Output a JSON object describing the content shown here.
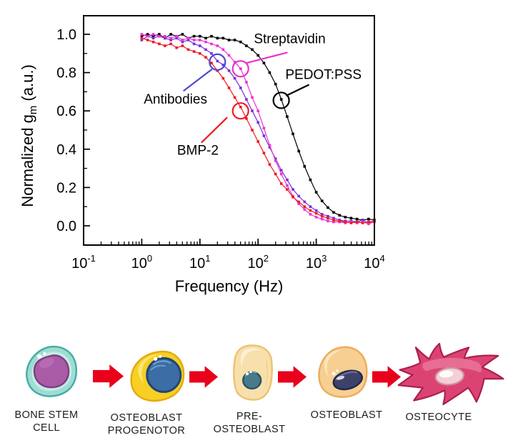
{
  "figure": {
    "background": "#ffffff"
  },
  "chart_data": {
    "type": "line",
    "title": "",
    "x_axis": {
      "label": "Frequency (Hz)",
      "scale": "log",
      "ticks": [
        "10^-1",
        "10^0",
        "10^1",
        "10^2",
        "10^3",
        "10^4"
      ],
      "tick_exponents": [
        -1,
        0,
        1,
        2,
        3,
        4
      ],
      "range_hz": [
        0.1,
        10000
      ]
    },
    "y_axis": {
      "label": "Normalized g_m (a.u.)",
      "label_parts": [
        "Normalized g",
        "m",
        " (a.u.)"
      ],
      "ticks": [
        "0.0",
        "0.2",
        "0.4",
        "0.6",
        "0.8",
        "1.0"
      ],
      "tick_values": [
        0.0,
        0.2,
        0.4,
        0.6,
        0.8,
        1.0
      ],
      "range": [
        -0.1,
        1.09
      ]
    },
    "grid": false,
    "legend": "annotated-on-plot",
    "frequencies_hz": [
      1,
      1.26,
      1.58,
      2,
      2.51,
      3.16,
      3.98,
      5.01,
      6.31,
      7.94,
      10,
      12.6,
      15.8,
      20,
      25.1,
      31.6,
      39.8,
      50.1,
      63.1,
      79.4,
      100,
      126,
      158,
      200,
      251,
      316,
      398,
      501,
      631,
      794,
      1000,
      1259,
      1585,
      1995,
      2512,
      3162,
      3981,
      5012,
      6310,
      7943,
      10000
    ],
    "series": [
      {
        "name": "PEDOT:PSS",
        "color": "#000000",
        "marker": "square",
        "values": [
          0.99,
          1.0,
          0.99,
          1.0,
          0.98,
          1.0,
          0.99,
          1.0,
          0.98,
          0.99,
          0.99,
          0.98,
          0.99,
          0.98,
          0.98,
          0.97,
          0.97,
          0.96,
          0.94,
          0.92,
          0.89,
          0.85,
          0.8,
          0.74,
          0.66,
          0.57,
          0.48,
          0.39,
          0.31,
          0.24,
          0.175,
          0.13,
          0.095,
          0.07,
          0.055,
          0.045,
          0.04,
          0.035,
          0.03,
          0.035,
          0.03
        ]
      },
      {
        "name": "Antibodies",
        "color": "#7B2ED8",
        "marker": "square",
        "values": [
          0.97,
          0.99,
          0.98,
          0.99,
          0.98,
          0.97,
          0.98,
          0.96,
          0.97,
          0.95,
          0.94,
          0.92,
          0.9,
          0.86,
          0.84,
          0.81,
          0.77,
          0.72,
          0.66,
          0.6,
          0.54,
          0.47,
          0.41,
          0.35,
          0.29,
          0.24,
          0.19,
          0.155,
          0.125,
          0.1,
          0.08,
          0.06,
          0.05,
          0.04,
          0.03,
          0.025,
          0.025,
          0.02,
          0.03,
          0.015,
          0.025
        ]
      },
      {
        "name": "Streptavidin",
        "color": "#E934D0",
        "marker": "square",
        "values": [
          1.0,
          0.99,
          1.0,
          0.99,
          0.99,
          0.98,
          0.99,
          0.97,
          0.98,
          0.97,
          0.97,
          0.96,
          0.95,
          0.94,
          0.92,
          0.89,
          0.855,
          0.82,
          0.75,
          0.67,
          0.6,
          0.51,
          0.42,
          0.34,
          0.27,
          0.21,
          0.155,
          0.115,
          0.085,
          0.06,
          0.045,
          0.035,
          0.025,
          0.02,
          0.02,
          0.015,
          0.02,
          0.015,
          0.02,
          0.01,
          0.02
        ]
      },
      {
        "name": "BMP-2",
        "color": "#ED1C24",
        "marker": "square",
        "values": [
          0.98,
          0.97,
          0.96,
          0.95,
          0.94,
          0.95,
          0.93,
          0.94,
          0.92,
          0.91,
          0.9,
          0.88,
          0.85,
          0.81,
          0.77,
          0.72,
          0.67,
          0.62,
          0.56,
          0.5,
          0.44,
          0.38,
          0.32,
          0.27,
          0.22,
          0.19,
          0.15,
          0.125,
          0.1,
          0.08,
          0.065,
          0.05,
          0.04,
          0.03,
          0.025,
          0.02,
          0.015,
          0.02,
          0.015,
          0.02,
          0.025
        ]
      }
    ],
    "annotations": [
      {
        "label": "Streptavidin",
        "text_color": "#000000",
        "accent_color": "#E934D0",
        "text_at": {
          "f": 350,
          "y": 0.98
        },
        "line": [
          {
            "f": 63,
            "y": 0.85
          },
          {
            "f": 320,
            "y": 0.905
          }
        ],
        "circle": {
          "f": 50,
          "y": 0.82
        }
      },
      {
        "label": "Antibodies",
        "text_color": "#000000",
        "accent_color": "#4A49CF",
        "text_at": {
          "f": 3.8,
          "y": 0.664
        },
        "line": [
          {
            "f": 16.2,
            "y": 0.818
          },
          {
            "f": 5.2,
            "y": 0.704
          }
        ],
        "circle": {
          "f": 20,
          "y": 0.855
        }
      },
      {
        "label": "PEDOT:PSS",
        "text_color": "#000000",
        "accent_color": "#000000",
        "text_at": {
          "f": 1330,
          "y": 0.792
        },
        "line": [
          {
            "f": 303,
            "y": 0.679
          },
          {
            "f": 753,
            "y": 0.737
          }
        ],
        "circle": {
          "f": 250,
          "y": 0.655
        }
      },
      {
        "label": "BMP-2",
        "text_color": "#000000",
        "accent_color": "#ED1C24",
        "text_at": {
          "f": 9.2,
          "y": 0.398
        },
        "line": [
          {
            "f": 29.5,
            "y": 0.566
          },
          {
            "f": 10.6,
            "y": 0.434
          }
        ],
        "circle": {
          "f": 50,
          "y": 0.6
        }
      }
    ]
  },
  "differentiation": {
    "arrow_color": "#E8001C",
    "stages": [
      {
        "label": "BONE STEM\nCELL",
        "colors": {
          "body": "#9EDCD4",
          "body_stroke": "#45ACA4",
          "body_light": "#C9EEE8",
          "nucleus": "#AA5BA6",
          "nucleus_stroke": "#7C3F80",
          "nucleus_light": "#C077BC"
        }
      },
      {
        "label": "OSTEOBLAST\nPROGENOTOR",
        "colors": {
          "body": "#F8CF25",
          "body_stroke": "#E3AC0E",
          "body_light": "#FBE97E",
          "nucleus": "#3C6DA5",
          "nucleus_stroke": "#1E4775",
          "nucleus_light": "#6D9AC8"
        }
      },
      {
        "label": "PRE-\nOSTEOBLAST",
        "colors": {
          "body": "#F8E0AC",
          "body_stroke": "#EDC372",
          "body_light": "#FCF0D2",
          "nucleus": "#477A8A",
          "nucleus_stroke": "#2A5566",
          "nucleus_light": "#79A3AE"
        }
      },
      {
        "label": "OSTEOBLAST",
        "colors": {
          "body": "#F7CF92",
          "body_stroke": "#EBAD5A",
          "body_light": "#FBE5BE",
          "nucleus": "#3E4168",
          "nucleus_stroke": "#23274B",
          "nucleus_light": "#6A6E96"
        }
      },
      {
        "label": "OSTEOCYTE",
        "colors": {
          "body": "#DB4472",
          "body_stroke": "#AE1F4B",
          "body_light": "#E87297",
          "nucleus": "#F4CFD5",
          "nucleus_stroke": "#CE92A0",
          "nucleus_light": "#FFFFFF"
        }
      }
    ]
  }
}
